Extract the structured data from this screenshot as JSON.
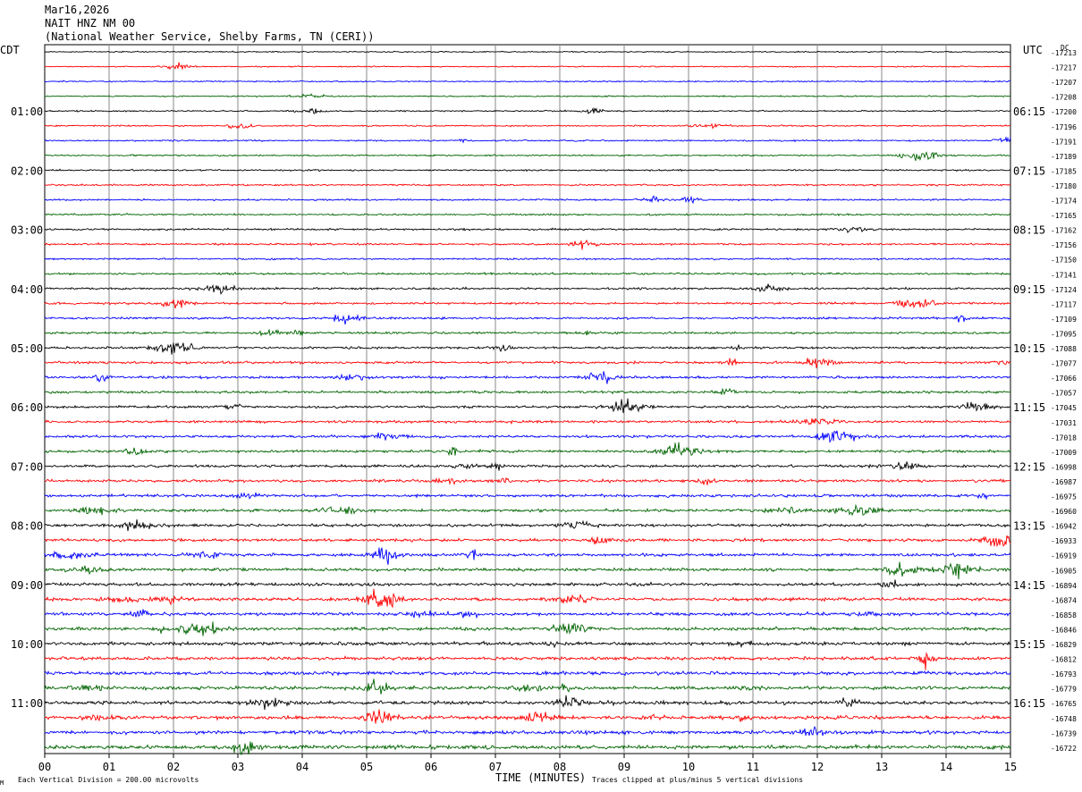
{
  "header": {
    "date": "Mar16,2026",
    "station": "NAIT HNZ NM 00",
    "network": "(National Weather Service, Shelby Farms, TN (CERI))"
  },
  "chart_data": {
    "type": "line",
    "title": "",
    "left_timezone": "CDT",
    "right_timezone": "UTC",
    "right_column_label": "DC",
    "xlabel": "TIME (MINUTES)",
    "x_ticks": [
      "00",
      "01",
      "02",
      "03",
      "04",
      "05",
      "06",
      "07",
      "08",
      "09",
      "10",
      "11",
      "12",
      "13",
      "14",
      "15"
    ],
    "xlim": [
      0,
      15
    ],
    "left_hour_labels": [
      "01:00",
      "02:00",
      "03:00",
      "04:00",
      "05:00",
      "06:00",
      "07:00",
      "08:00",
      "09:00",
      "10:00",
      "11:00"
    ],
    "right_hour_labels": [
      "06:15",
      "07:15",
      "08:15",
      "09:15",
      "10:15",
      "11:15",
      "12:15",
      "13:15",
      "14:15",
      "15:15",
      "16:15"
    ],
    "trace_colors": [
      "#000000",
      "#ff0000",
      "#0000ff",
      "#006400"
    ],
    "dc_offsets": [
      "-17213",
      "-17217",
      "-17207",
      "-17208",
      "-17200",
      "-17196",
      "-17191",
      "-17189",
      "-17185",
      "-17180",
      "-17174",
      "-17165",
      "-17162",
      "-17156",
      "-17150",
      "-17141",
      "-17124",
      "-17117",
      "-17109",
      "-17095",
      "-17088",
      "-17077",
      "-17066",
      "-17057",
      "-17045",
      "-17031",
      "-17018",
      "-17009",
      "-16998",
      "-16987",
      "-16975",
      "-16960",
      "-16942",
      "-16933",
      "-16919",
      "-16905",
      "-16894",
      "-16874",
      "-16858",
      "-16846",
      "-16829",
      "-16812",
      "-16793",
      "-16779",
      "-16765",
      "-16748",
      "-16739",
      "-16722"
    ],
    "footer_scale": "Each Vertical Division =  200.00 microvolts",
    "footer_clip": "Traces clipped at plus/minus 5 vertical divisions",
    "footer_mark": "M"
  }
}
